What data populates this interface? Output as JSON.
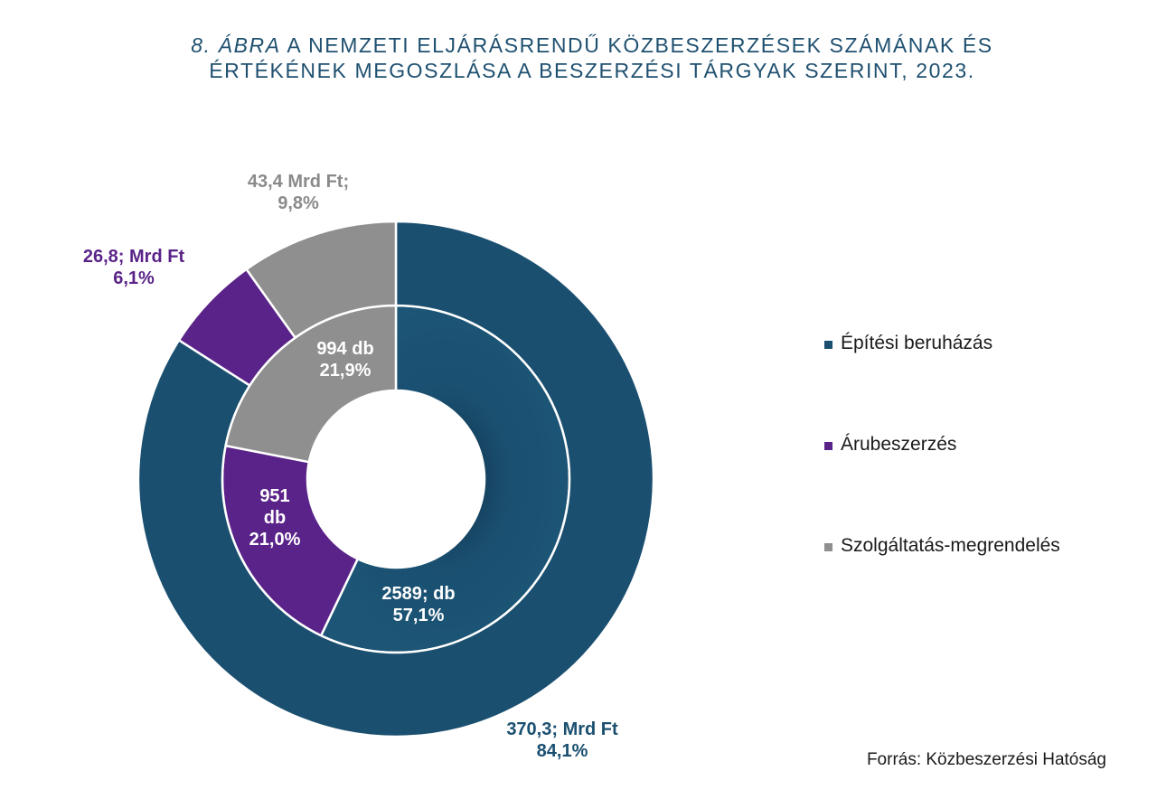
{
  "title": {
    "lead": "8. ÁBRA",
    "line1_rest": "A NEMZETI ELJÁRÁSRENDŰ KÖZBESZERZÉSEK SZÁMÁNAK ÉS",
    "line2": "ÉRTÉKÉNEK MEGOSZLÁSA A BESZERZÉSI TÁRGYAK SZERINT, 2023."
  },
  "colors": {
    "construction": "#1a4f70",
    "goods": "#5a2389",
    "services": "#8f8f8f",
    "title": "#1f5070"
  },
  "chart_data": {
    "type": "donut",
    "title": "A nemzeti eljárásrendű közbeszerzések számának és értékének megoszlása a beszerzési tárgyak szerint, 2023.",
    "categories": [
      "Építési beruházás",
      "Árubeszerzés",
      "Szolgáltatás-megrendelés"
    ],
    "series": [
      {
        "name": "inner-count",
        "unit": "db",
        "values": [
          2589,
          951,
          994
        ],
        "percents": [
          57.1,
          21.0,
          21.9
        ],
        "labels": [
          [
            "2589; db",
            "57,1%"
          ],
          [
            "951",
            "db",
            "21,0%"
          ],
          [
            "994 db",
            "21,9%"
          ]
        ]
      },
      {
        "name": "outer-value",
        "unit": "Mrd Ft",
        "values": [
          370.3,
          26.8,
          43.4
        ],
        "percents": [
          84.1,
          6.1,
          9.8
        ],
        "labels": [
          [
            "370,3; Mrd Ft",
            "84,1%"
          ],
          [
            "26,8; Mrd Ft",
            "6,1%"
          ],
          [
            "43,4 Mrd Ft;",
            "9,8%"
          ]
        ]
      }
    ],
    "legend_position": "right"
  },
  "source": "Forrás: Közbeszerzési Hatóság"
}
